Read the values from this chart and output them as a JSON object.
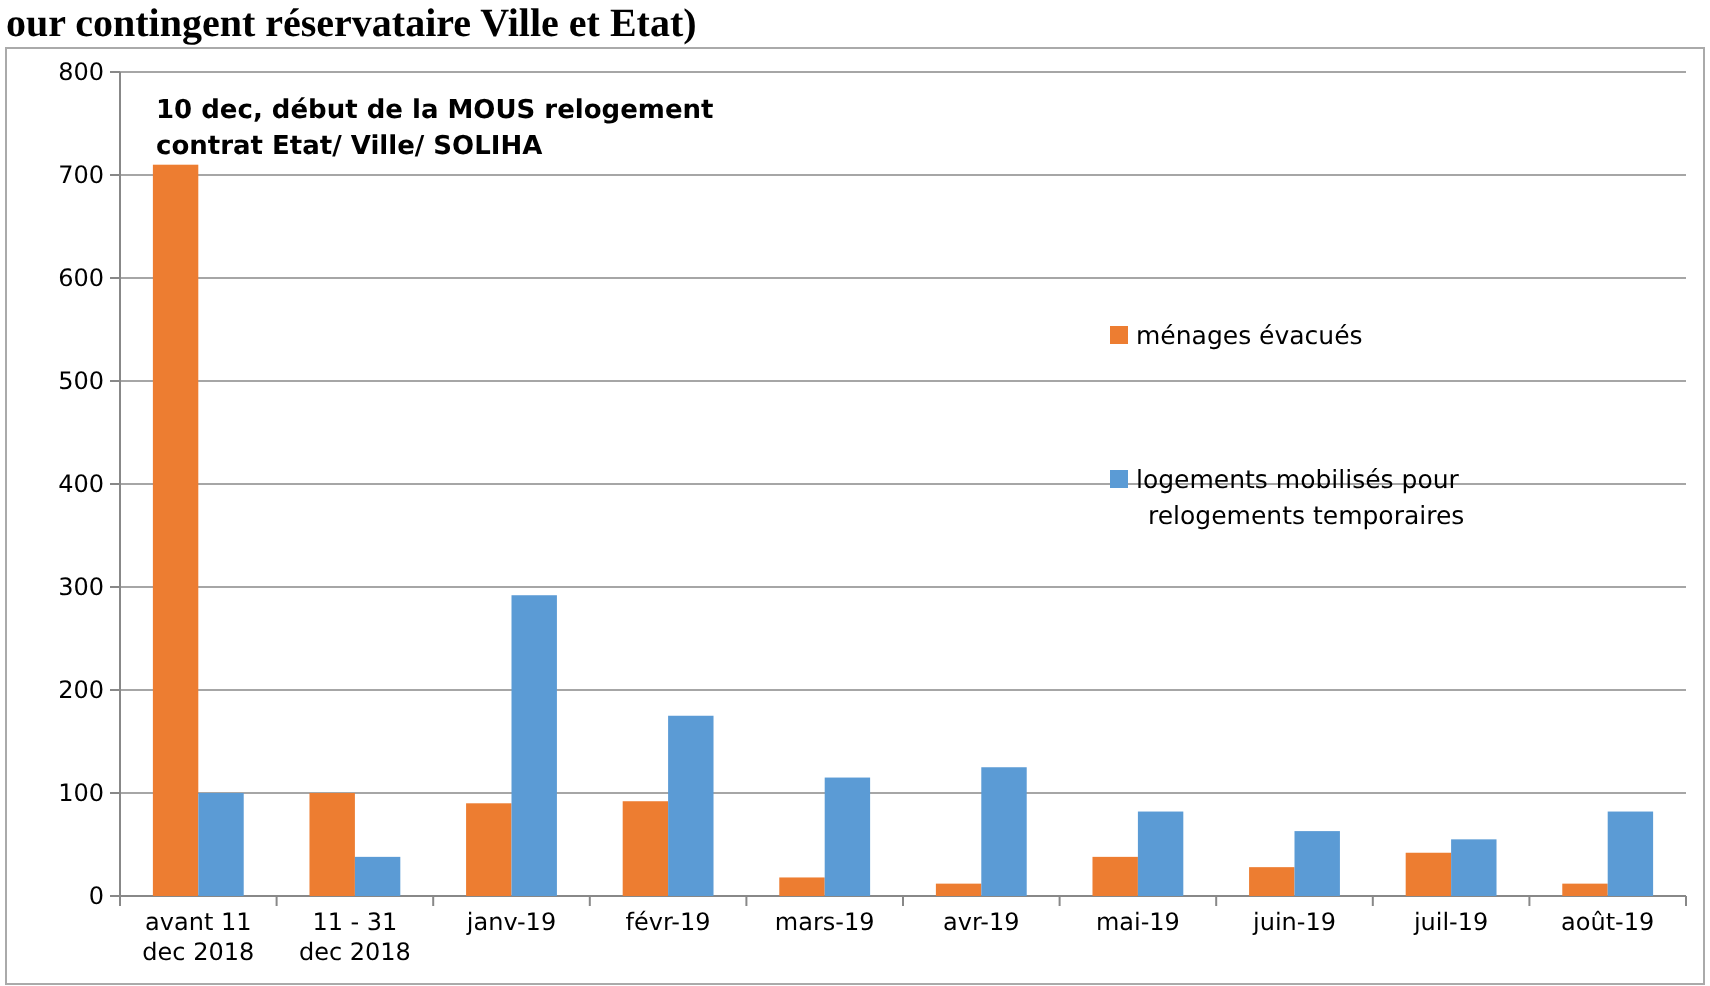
{
  "chart_data": {
    "type": "bar",
    "title": "our contingent réservataire Ville et Etat)",
    "annotations": [
      "10 dec, début de la MOUS relogement contrat Etat/ Ville/ SOLIHA"
    ],
    "categories": [
      "avant 11 dec 2018",
      "11 - 31 dec 2018",
      "janv-19",
      "févr-19",
      "mars-19",
      "avr-19",
      "mai-19",
      "juin-19",
      "juil-19",
      "août-19"
    ],
    "series": [
      {
        "name": "ménages évacués",
        "color": "#ed7d31",
        "values": [
          710,
          100,
          90,
          92,
          18,
          12,
          38,
          28,
          42,
          12
        ]
      },
      {
        "name": "logements mobilisés pour relogements temporaires",
        "color": "#5b9bd5",
        "values": [
          100,
          38,
          292,
          175,
          115,
          125,
          82,
          63,
          55,
          82
        ]
      }
    ],
    "ylim": [
      0,
      800
    ],
    "yticks": [
      0,
      100,
      200,
      300,
      400,
      500,
      600,
      700,
      800
    ],
    "grid": "y",
    "legend": "right"
  }
}
